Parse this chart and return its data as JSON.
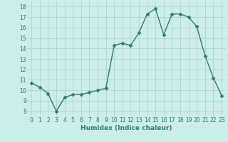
{
  "x": [
    0,
    1,
    2,
    3,
    4,
    5,
    6,
    7,
    8,
    9,
    10,
    11,
    12,
    13,
    14,
    15,
    16,
    17,
    18,
    19,
    20,
    21,
    22,
    23
  ],
  "y": [
    10.7,
    10.3,
    9.7,
    8.0,
    9.3,
    9.6,
    9.6,
    9.8,
    10.0,
    10.2,
    14.3,
    14.5,
    14.3,
    15.5,
    17.3,
    17.8,
    15.3,
    17.3,
    17.3,
    17.0,
    16.1,
    13.3,
    11.2,
    9.5
  ],
  "line_color": "#2e7d6e",
  "marker": "D",
  "markersize": 2.5,
  "linewidth": 1.0,
  "bg_color": "#cceee8",
  "grid_color": "#b0ccc8",
  "xlabel": "Humidex (Indice chaleur)",
  "ylabel_ticks": [
    8,
    9,
    10,
    11,
    12,
    13,
    14,
    15,
    16,
    17,
    18
  ],
  "xlim": [
    -0.5,
    23.5
  ],
  "ylim": [
    7.5,
    18.5
  ],
  "tick_fontsize": 5.5,
  "xlabel_fontsize": 6.5
}
